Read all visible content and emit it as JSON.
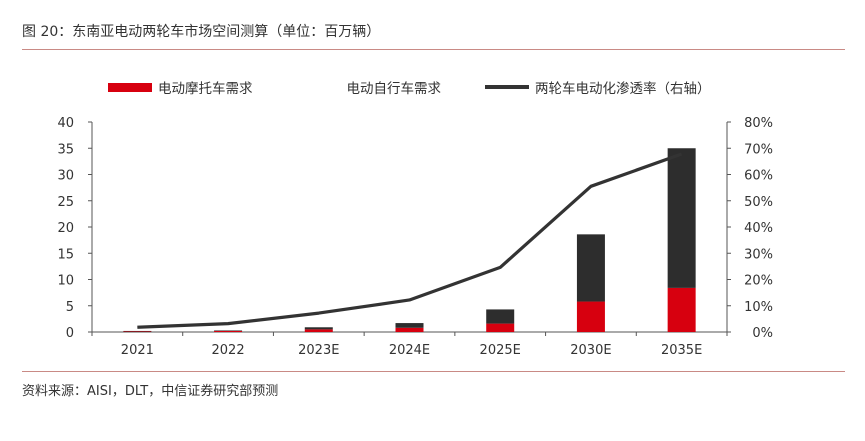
{
  "title": "图 20：东南亚电动两轮车市场空间测算（单位：百万辆）",
  "source": "资料来源：AISI，DLT，中信证券研究部预测",
  "chart_data": {
    "type": "bar",
    "stacked": true,
    "categories": [
      "2021",
      "2022",
      "2023E",
      "2024E",
      "2025E",
      "2030E",
      "2035E"
    ],
    "series": [
      {
        "name": "电动摩托车需求",
        "kind": "bar",
        "axis": "left",
        "color": "#d7000f",
        "values": [
          0.1,
          0.2,
          0.5,
          0.8,
          1.6,
          5.8,
          8.4
        ]
      },
      {
        "name": "电动自行车需求",
        "kind": "bar",
        "axis": "left",
        "color": "#2d2d2d",
        "values": [
          0.1,
          0.1,
          0.4,
          0.9,
          2.7,
          12.8,
          26.6
        ]
      },
      {
        "name": "两轮车电动化渗透率（右轴）",
        "kind": "line",
        "axis": "right",
        "color": "#333333",
        "values": [
          1.8,
          3.2,
          7.2,
          12.2,
          24.6,
          55.5,
          67.8
        ]
      }
    ],
    "y_left": {
      "ylim": [
        0,
        40
      ],
      "ticks": [
        "40",
        "35",
        "30",
        "25",
        "20",
        "15",
        "10",
        "5",
        "0"
      ]
    },
    "y_right": {
      "ylim": [
        0,
        80
      ],
      "ticks": [
        "80%",
        "70%",
        "60%",
        "50%",
        "40%",
        "30%",
        "20%",
        "10%",
        "0%"
      ]
    },
    "grid": false,
    "legend_position": "top"
  }
}
